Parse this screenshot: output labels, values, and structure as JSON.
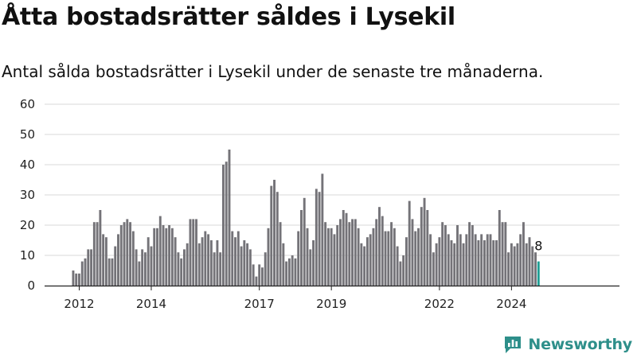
{
  "header": {
    "title": "Åtta bostadsrätter såldes i Lysekil",
    "subtitle": "Antal sålda bostadsrätter i Lysekil under de senaste tre månaderna."
  },
  "brand": {
    "name": "Newsworthy",
    "color": "#2e8f8a",
    "icon": "newsworthy-logo-icon"
  },
  "chart_data": {
    "type": "bar",
    "title": "Åtta bostadsrätter såldes i Lysekil",
    "subtitle": "Antal sålda bostadsrätter i Lysekil under de senaste tre månaderna.",
    "start": "2012-01",
    "frequency": "monthly",
    "xticks": [
      {
        "label": "2012",
        "index": 2
      },
      {
        "label": "2014",
        "index": 26
      },
      {
        "label": "2017",
        "index": 62
      },
      {
        "label": "2019",
        "index": 86
      },
      {
        "label": "2022",
        "index": 122
      },
      {
        "label": "2024",
        "index": 146
      }
    ],
    "values": [
      5,
      4,
      4,
      8,
      9,
      12,
      12,
      21,
      21,
      25,
      17,
      16,
      9,
      9,
      13,
      17,
      20,
      21,
      22,
      21,
      18,
      12,
      8,
      12,
      11,
      16,
      13,
      19,
      19,
      23,
      20,
      19,
      20,
      19,
      16,
      11,
      9,
      12,
      14,
      22,
      22,
      22,
      14,
      16,
      18,
      17,
      15,
      11,
      15,
      11,
      40,
      41,
      45,
      18,
      16,
      18,
      13,
      15,
      14,
      12,
      7,
      3,
      7,
      6,
      11,
      19,
      33,
      35,
      31,
      21,
      14,
      8,
      9,
      10,
      9,
      18,
      25,
      29,
      19,
      12,
      15,
      32,
      31,
      37,
      21,
      19,
      19,
      17,
      20,
      22,
      25,
      24,
      21,
      22,
      22,
      19,
      14,
      13,
      16,
      17,
      19,
      22,
      26,
      23,
      18,
      18,
      21,
      19,
      13,
      8,
      10,
      16,
      28,
      22,
      18,
      19,
      26,
      29,
      25,
      17,
      11,
      14,
      16,
      21,
      20,
      17,
      15,
      14,
      20,
      17,
      14,
      17,
      21,
      20,
      17,
      15,
      17,
      15,
      17,
      17,
      15,
      15,
      25,
      21,
      21,
      11,
      14,
      13,
      14,
      17,
      21,
      14,
      16,
      13,
      11,
      8
    ],
    "ylim": [
      0,
      60
    ],
    "yticks": [
      0,
      10,
      20,
      30,
      40,
      50,
      60
    ],
    "grid": true,
    "bar_color": "#747378",
    "highlight_color": "#1f9e94",
    "highlight_index": 155,
    "highlight_label": "8",
    "legend": "none"
  }
}
